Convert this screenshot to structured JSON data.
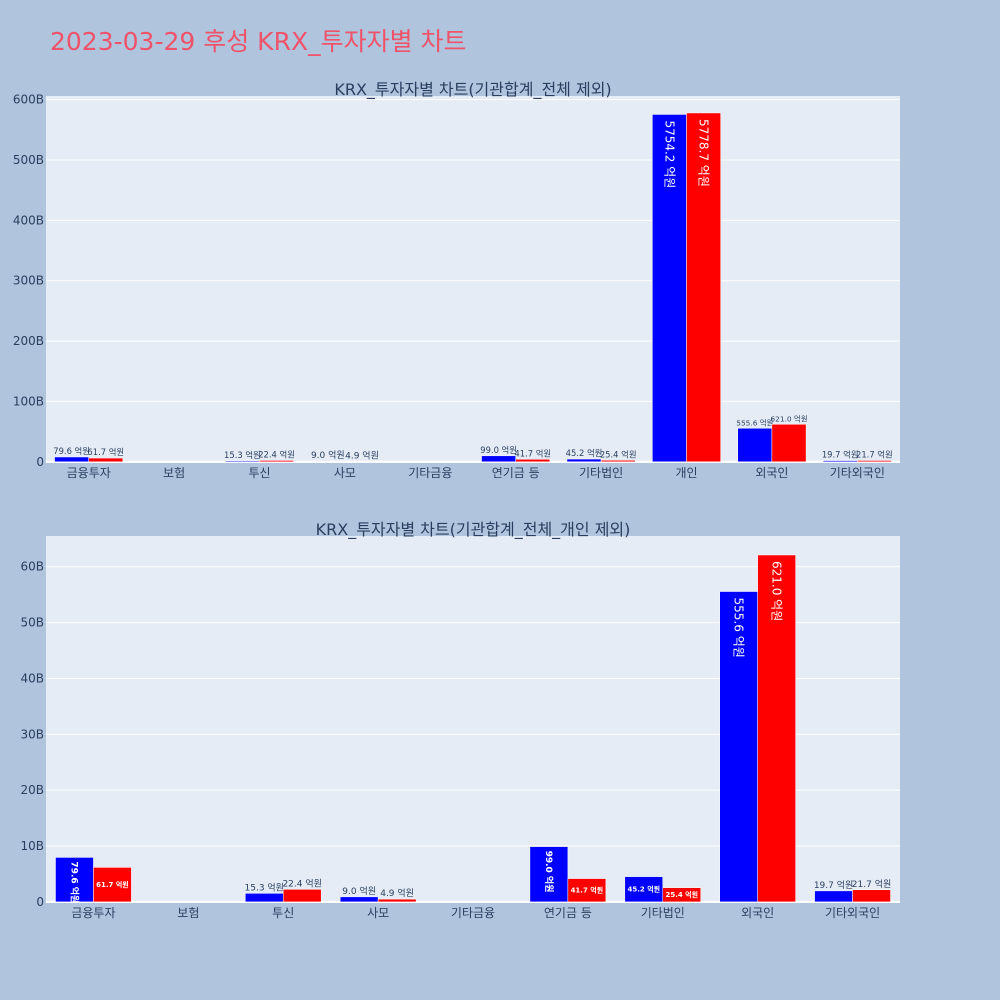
{
  "page": {
    "title": "2023-03-29 후성 KRX_투자자별 차트"
  },
  "colors": {
    "background": "#b0c4de",
    "plot_bg": "#e5ecf6",
    "title": "#ef5369",
    "sell": "#0000ff",
    "buy": "#ff0000",
    "text": "#2a3f5f"
  },
  "chart_data": [
    {
      "type": "bar",
      "title": "KRX_투자자별 차트(기관합계_전체 제외)",
      "categories": [
        "금융투자",
        "보험",
        "투신",
        "사모",
        "기타금융",
        "연기금 등",
        "기타법인",
        "개인",
        "외국인",
        "기타외국인"
      ],
      "series": [
        {
          "color": "#0000ff",
          "values": [
            7.96,
            0,
            1.53,
            0.9,
            0,
            9.9,
            4.52,
            575.42,
            55.56,
            1.97
          ],
          "labels": [
            "79.6 억원",
            "",
            "15.3 억원",
            "9.0 억원",
            "",
            "99.0 억원",
            "45.2 억원",
            "5754.2 억원",
            "555.6 억원",
            "19.7 억원"
          ]
        },
        {
          "color": "#ff0000",
          "values": [
            6.17,
            0,
            2.24,
            0.49,
            0,
            4.17,
            2.54,
            577.87,
            62.1,
            2.17
          ],
          "labels": [
            "61.7 억원",
            "",
            "22.4 억원",
            "4.9 억원",
            "",
            "41.7 억원",
            "25.4 억원",
            "5778.7 억원",
            "621.0 억원",
            "21.7 억원"
          ]
        }
      ],
      "yticks": [
        "0",
        "100B",
        "200B",
        "300B",
        "400B",
        "500B",
        "600B"
      ],
      "ytick_values": [
        0,
        100,
        200,
        300,
        400,
        500,
        600
      ],
      "ylim": [
        -2,
        606
      ],
      "grid": true
    },
    {
      "type": "bar",
      "title": "KRX_투자자별 차트(기관합계_전체_개인 제외)",
      "categories": [
        "금융투자",
        "보험",
        "투신",
        "사모",
        "기타금융",
        "연기금 등",
        "기타법인",
        "외국인",
        "기타외국인"
      ],
      "series": [
        {
          "color": "#0000ff",
          "values": [
            7.96,
            0,
            1.53,
            0.9,
            0,
            9.9,
            4.52,
            55.56,
            1.97
          ],
          "labels": [
            "79.6 억원",
            "",
            "15.3 억원",
            "9.0 억원",
            "",
            "99.0 억원",
            "45.2 억원",
            "555.6 억원",
            "19.7 억원"
          ]
        },
        {
          "color": "#ff0000",
          "values": [
            6.17,
            0,
            2.24,
            0.49,
            0,
            4.17,
            2.54,
            62.1,
            2.17
          ],
          "labels": [
            "61.7 억원",
            "",
            "22.4 억원",
            "4.9 억원",
            "",
            "41.7 억원",
            "25.4 억원",
            "621.0 억원",
            "21.7 억원"
          ]
        }
      ],
      "yticks": [
        "0",
        "10B",
        "20B",
        "30B",
        "40B",
        "50B",
        "60B"
      ],
      "ytick_values": [
        0,
        10,
        20,
        30,
        40,
        50,
        60
      ],
      "ylim": [
        -0.2,
        65.5
      ],
      "grid": true
    }
  ]
}
